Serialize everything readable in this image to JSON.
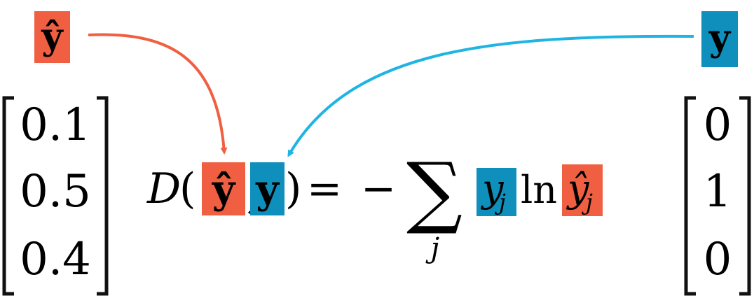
{
  "colors": {
    "pred": "#f05f41",
    "true": "#0f8fbb",
    "arrow_pred": "#f05f41",
    "arrow_true": "#1fb4e3",
    "ink": "#111111"
  },
  "labels": {
    "pred_symbol": "ŷ",
    "true_symbol": "y"
  },
  "vectors": {
    "pred_values": [
      "0.1",
      "0.5",
      "0.4"
    ],
    "true_values": [
      "0",
      "1",
      "0"
    ]
  },
  "formula": {
    "func": "D",
    "open_paren": "(",
    "comma": ",",
    "close_paren": ")",
    "equals": "=",
    "minus": "−",
    "sum": "∑",
    "sum_index": "j",
    "arg_pred": "ŷ",
    "arg_true": "y",
    "term_y": "y",
    "term_y_sub": "j",
    "ln": "ln",
    "term_yhat": "ŷ",
    "term_yhat_sub": "j"
  }
}
